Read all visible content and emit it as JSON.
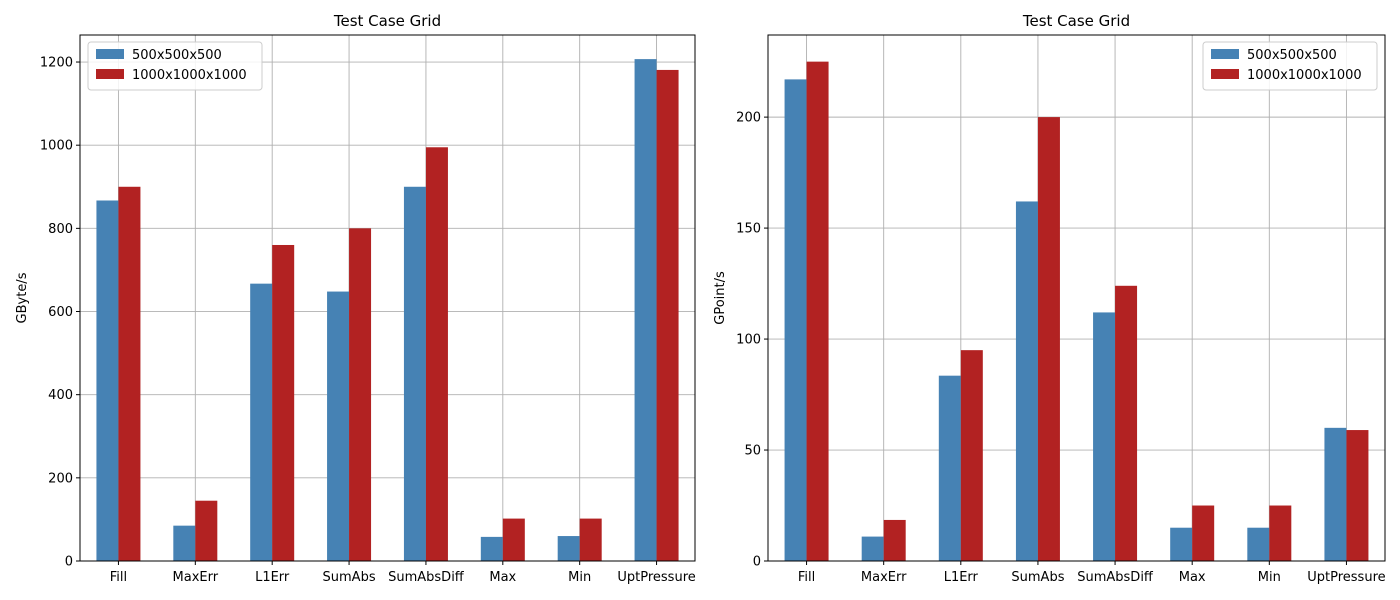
{
  "colors": {
    "series_a": "#4682b4",
    "series_b": "#b22222"
  },
  "chart_data": [
    {
      "type": "bar",
      "title": "Test Case Grid",
      "xlabel": "",
      "ylabel": "GByte/s",
      "categories": [
        "Fill",
        "MaxErr",
        "L1Err",
        "SumAbs",
        "SumAbsDiff",
        "Max",
        "Min",
        "UptPressure"
      ],
      "series": [
        {
          "name": "500x500x500",
          "values": [
            867,
            85,
            667,
            648,
            900,
            58,
            60,
            1207
          ]
        },
        {
          "name": "1000x1000x1000",
          "values": [
            900,
            145,
            760,
            800,
            995,
            102,
            102,
            1181
          ]
        }
      ],
      "ylim": [
        0,
        1265
      ],
      "yticks": [
        0,
        200,
        400,
        600,
        800,
        1000,
        1200
      ],
      "grid": true,
      "legend_position": "top-left"
    },
    {
      "type": "bar",
      "title": "Test Case Grid",
      "xlabel": "",
      "ylabel": "GPoint/s",
      "categories": [
        "Fill",
        "MaxErr",
        "L1Err",
        "SumAbs",
        "SumAbsDiff",
        "Max",
        "Min",
        "UptPressure"
      ],
      "series": [
        {
          "name": "500x500x500",
          "values": [
            217,
            11,
            83.5,
            162,
            112,
            15,
            15,
            60
          ]
        },
        {
          "name": "1000x1000x1000",
          "values": [
            225,
            18.5,
            95,
            200,
            124,
            25,
            25,
            59
          ]
        }
      ],
      "ylim": [
        0,
        237
      ],
      "yticks": [
        0,
        50,
        100,
        150,
        200
      ],
      "grid": true,
      "legend_position": "top-right"
    }
  ]
}
